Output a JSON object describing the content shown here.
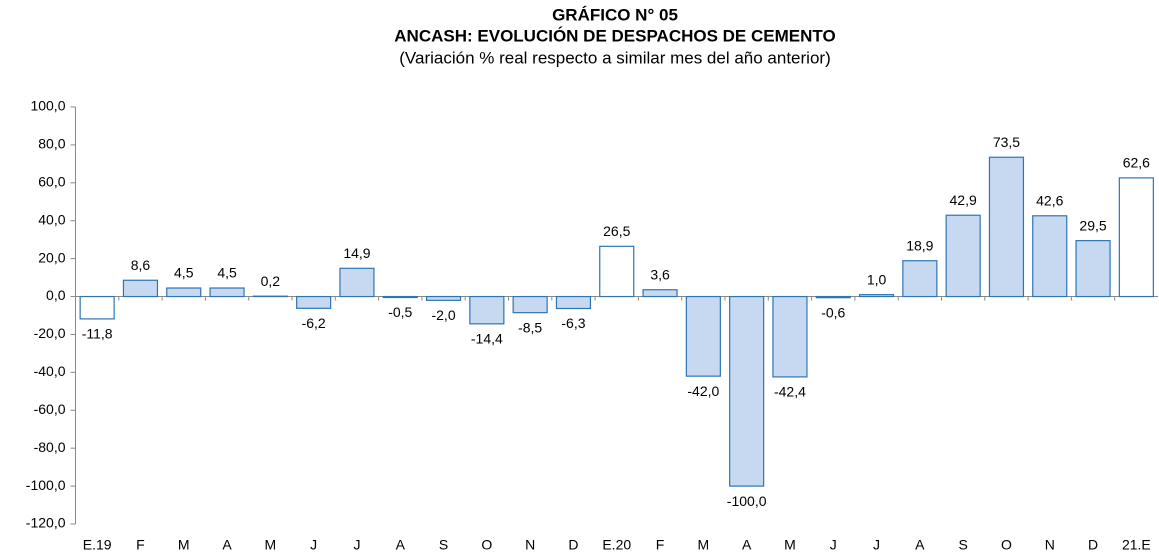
{
  "chart_data": {
    "type": "bar",
    "title": "GRÁFICO N° 05",
    "subtitle": "ANCASH: EVOLUCIÓN DE DESPACHOS DE CEMENTO",
    "note": "(Variación % real respecto a similar mes del año anterior)",
    "categories": [
      "E.19",
      "F",
      "M",
      "A",
      "M",
      "J",
      "J",
      "A",
      "S",
      "O",
      "N",
      "D",
      "E.20",
      "F",
      "M",
      "A",
      "M",
      "J",
      "J",
      "A",
      "S",
      "O",
      "N",
      "D",
      "21.E"
    ],
    "values": [
      -11.8,
      8.6,
      4.5,
      4.5,
      0.2,
      -6.2,
      14.9,
      -0.5,
      -2.0,
      -14.4,
      -8.5,
      -6.3,
      26.5,
      3.6,
      -42.0,
      -100.0,
      -42.4,
      -0.6,
      1.0,
      18.9,
      42.9,
      73.5,
      42.6,
      29.5,
      62.6
    ],
    "value_labels": [
      "-11,8",
      "8,6",
      "4,5",
      "4,5",
      "0,2",
      "-6,2",
      "14,9",
      "-0,5",
      "-2,0",
      "-14,4",
      "-8,5",
      "-6,3",
      "26,5",
      "3,6",
      "-42,0",
      "-100,0",
      "-42,4",
      "-0,6",
      "1,0",
      "18,9",
      "42,9",
      "73,5",
      "42,6",
      "29,5",
      "62,6"
    ],
    "colors": [
      "#ffffff",
      "#c6d9f1",
      "#c6d9f1",
      "#c6d9f1",
      "#c6d9f1",
      "#c6d9f1",
      "#c6d9f1",
      "#c6d9f1",
      "#c6d9f1",
      "#c6d9f1",
      "#c6d9f1",
      "#c6d9f1",
      "#ffffff",
      "#c6d9f1",
      "#c6d9f1",
      "#c6d9f1",
      "#c6d9f1",
      "#c6d9f1",
      "#c6d9f1",
      "#c6d9f1",
      "#c6d9f1",
      "#c6d9f1",
      "#c6d9f1",
      "#c6d9f1",
      "#ffffff"
    ],
    "stroke": "#2e75b6",
    "ylim": [
      -120,
      100
    ],
    "yticks": [
      {
        "value": -120,
        "label": "-120,0"
      },
      {
        "value": -100,
        "label": "-100,0"
      },
      {
        "value": -80,
        "label": "-80,0"
      },
      {
        "value": -60,
        "label": "-60,0"
      },
      {
        "value": -40,
        "label": "-40,0"
      },
      {
        "value": -20,
        "label": "-20,0"
      },
      {
        "value": 0,
        "label": "0,0"
      },
      {
        "value": 20,
        "label": "20,0"
      },
      {
        "value": 40,
        "label": "40,0"
      },
      {
        "value": 60,
        "label": "60,0"
      },
      {
        "value": 80,
        "label": "80,0"
      },
      {
        "value": 100,
        "label": "100,0"
      }
    ],
    "grid": false
  }
}
